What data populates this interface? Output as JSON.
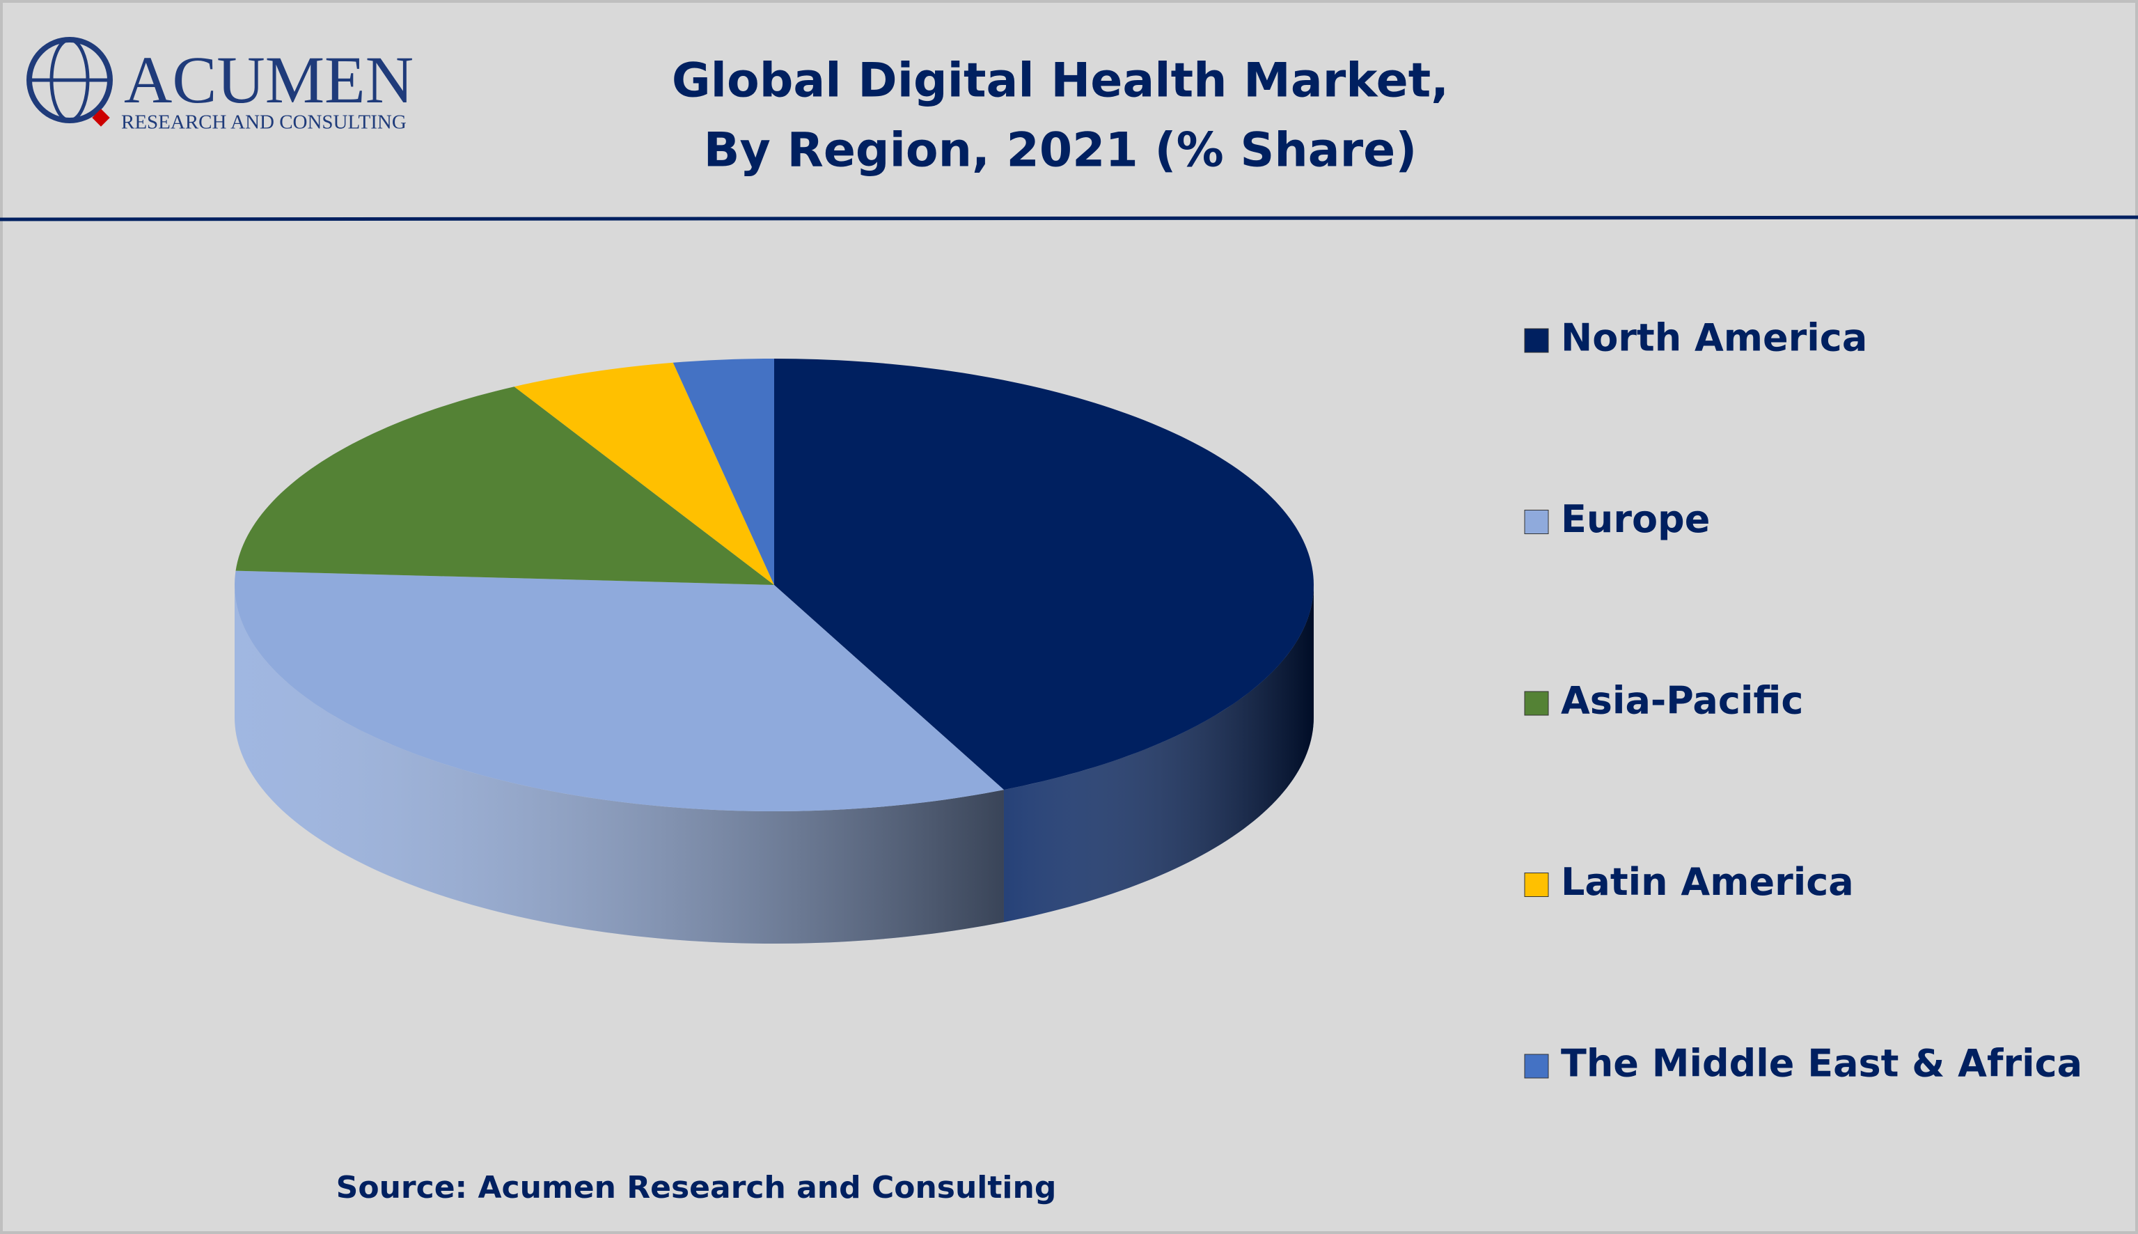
{
  "logo": {
    "name": "ACUMEN",
    "tagline": "RESEARCH AND CONSULTING"
  },
  "chart_data": {
    "type": "pie3d",
    "title": "Global Digital Health Market,",
    "subtitle": "By Region, 2021 (% Share)",
    "categories": [
      "North America",
      "Europe",
      "Asia-Pacific",
      "Latin America",
      "The Middle East & Africa"
    ],
    "values": [
      43,
      33,
      16,
      5,
      3
    ],
    "colors": [
      "#002060",
      "#8faadc",
      "#548235",
      "#ffc000",
      "#4472c4"
    ],
    "legend": "right",
    "source": "Source: Acumen Research and Consulting"
  }
}
